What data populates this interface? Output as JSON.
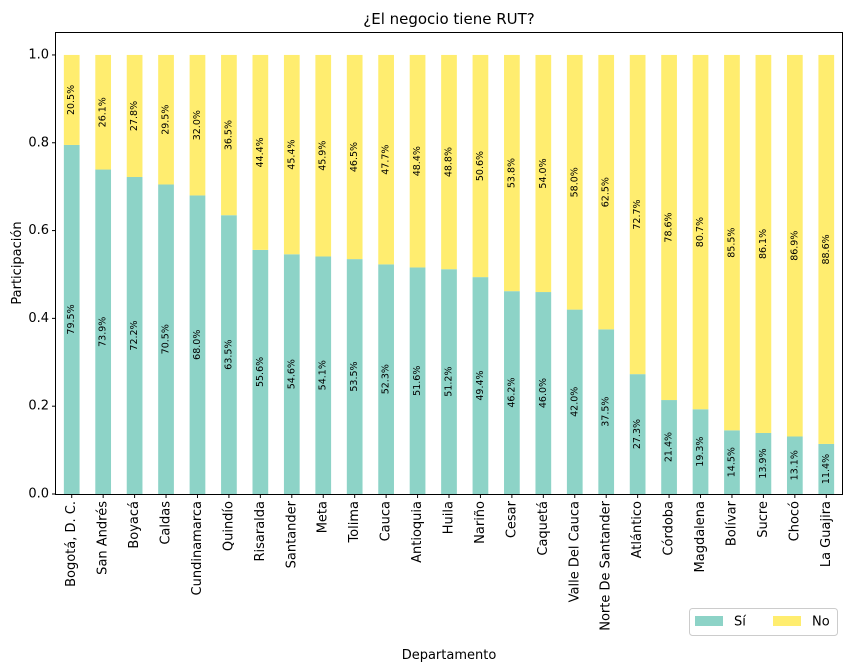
{
  "chart_data": {
    "type": "bar",
    "stacked": true,
    "title": "¿El negocio tiene RUT?",
    "xlabel": "Departamento",
    "ylabel": "Participación",
    "ylim": [
      0,
      1.05
    ],
    "yticks": [
      "0.0",
      "0.2",
      "0.4",
      "0.6",
      "0.8",
      "1.0"
    ],
    "ytick_values": [
      0,
      0.2,
      0.4,
      0.6,
      0.8,
      1.0
    ],
    "legend_position": "bottom-right",
    "grid": false,
    "categories": [
      "Bogotá, D. C.",
      "San Andrés",
      "Boyacá",
      "Caldas",
      "Cundinamarca",
      "Quindío",
      "Risaralda",
      "Santander",
      "Meta",
      "Tolima",
      "Cauca",
      "Antioquia",
      "Huila",
      "Nariño",
      "Cesar",
      "Caquetá",
      "Valle Del Cauca",
      "Norte De Santander",
      "Atlántico",
      "Córdoba",
      "Magdalena",
      "Bolívar",
      "Sucre",
      "Chocó",
      "La Guajira"
    ],
    "series": [
      {
        "name": "Sí",
        "color": "#8dd3c7",
        "values": [
          0.795,
          0.739,
          0.722,
          0.705,
          0.68,
          0.635,
          0.556,
          0.546,
          0.541,
          0.535,
          0.523,
          0.516,
          0.512,
          0.494,
          0.462,
          0.46,
          0.42,
          0.375,
          0.273,
          0.214,
          0.193,
          0.145,
          0.139,
          0.131,
          0.114
        ],
        "labels": [
          "79.5%",
          "73.9%",
          "72.2%",
          "70.5%",
          "68.0%",
          "63.5%",
          "55.6%",
          "54.6%",
          "54.1%",
          "53.5%",
          "52.3%",
          "51.6%",
          "51.2%",
          "49.4%",
          "46.2%",
          "46.0%",
          "42.0%",
          "37.5%",
          "27.3%",
          "21.4%",
          "19.3%",
          "14.5%",
          "13.9%",
          "13.1%",
          "11.4%"
        ]
      },
      {
        "name": "No",
        "color": "#ffed6f",
        "values": [
          0.205,
          0.261,
          0.278,
          0.295,
          0.32,
          0.365,
          0.444,
          0.454,
          0.459,
          0.465,
          0.477,
          0.484,
          0.488,
          0.506,
          0.538,
          0.54,
          0.58,
          0.625,
          0.727,
          0.786,
          0.807,
          0.855,
          0.861,
          0.869,
          0.886
        ],
        "labels": [
          "20.5%",
          "26.1%",
          "27.8%",
          "29.5%",
          "32.0%",
          "36.5%",
          "44.4%",
          "45.4%",
          "45.9%",
          "46.5%",
          "47.7%",
          "48.4%",
          "48.8%",
          "50.6%",
          "53.8%",
          "54.0%",
          "58.0%",
          "62.5%",
          "72.7%",
          "78.6%",
          "80.7%",
          "85.5%",
          "86.1%",
          "86.9%",
          "88.6%"
        ]
      }
    ]
  }
}
